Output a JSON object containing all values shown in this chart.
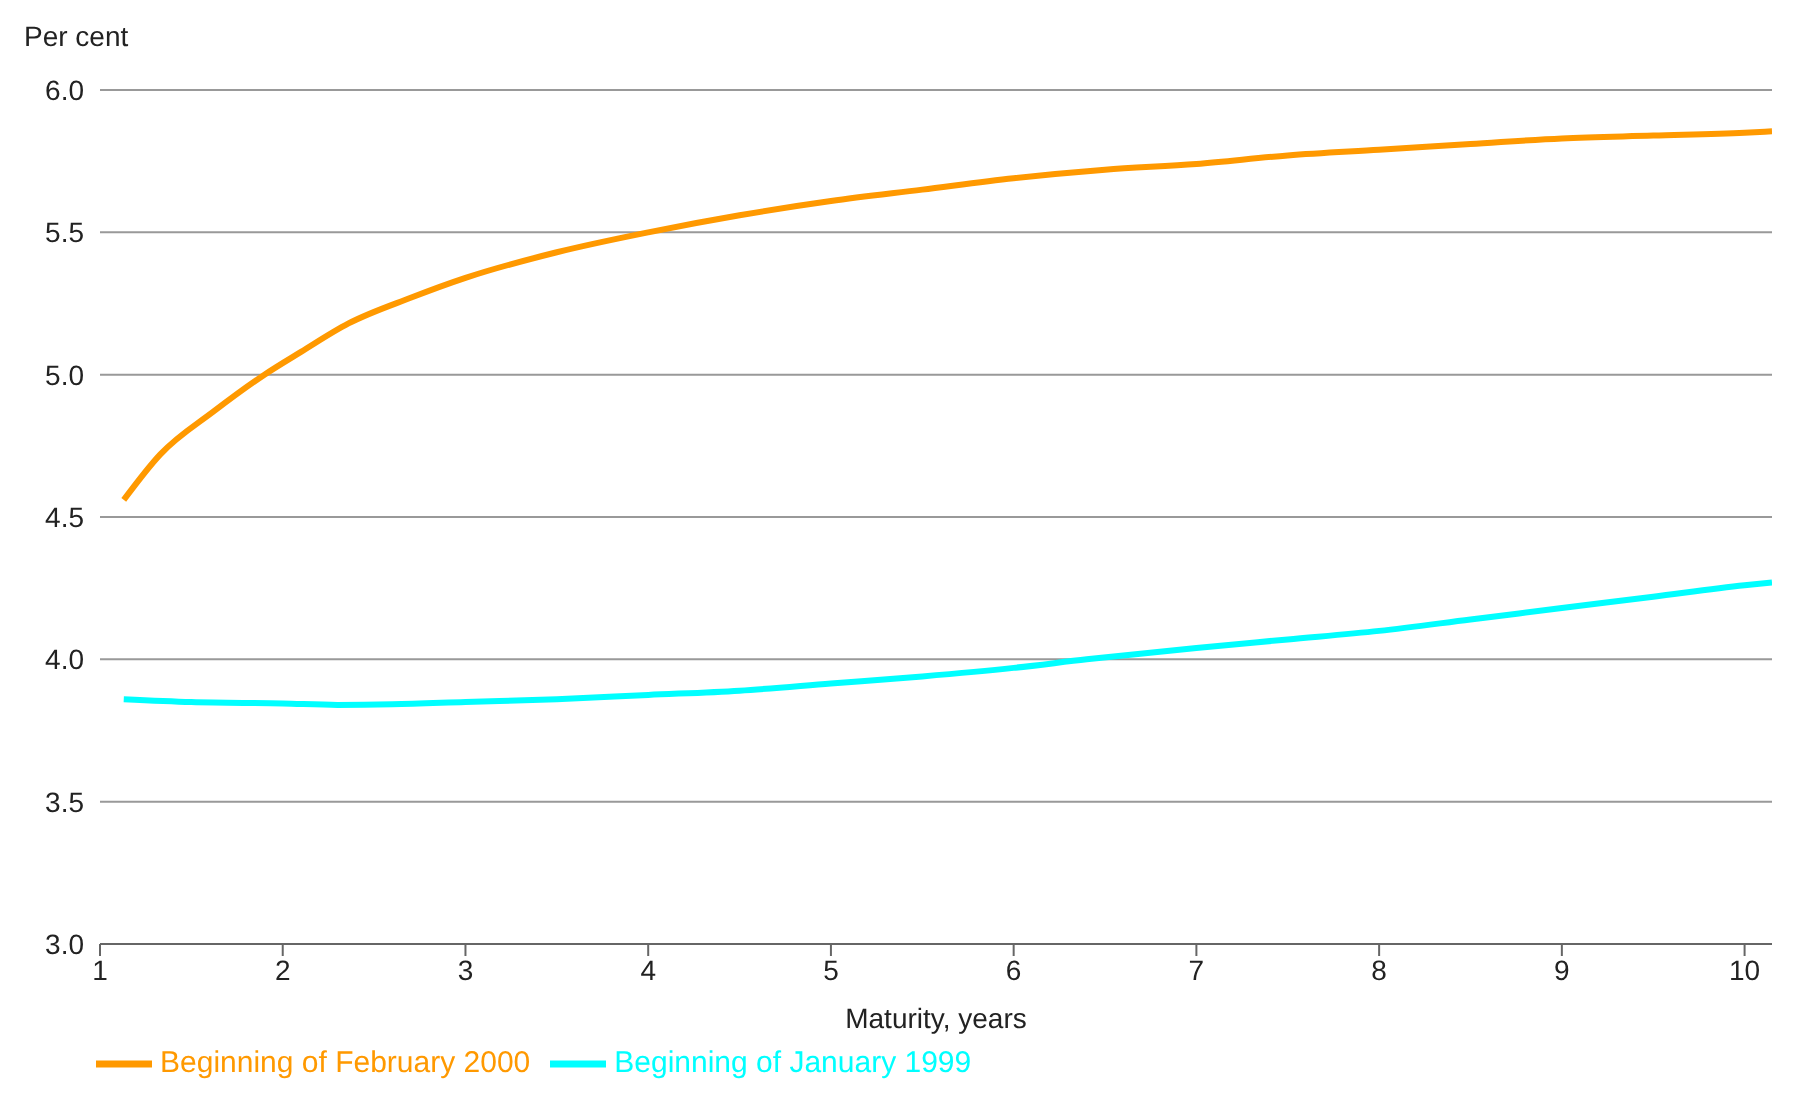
{
  "chart_data": {
    "type": "line",
    "xlabel": "Maturity, years",
    "ylabel": "Per cent",
    "xlim": [
      1,
      10.15
    ],
    "xticks": [
      1,
      2,
      3,
      4,
      5,
      6,
      7,
      8,
      9,
      10
    ],
    "ylim": [
      3,
      6
    ],
    "yticks": [
      {
        "value": 3,
        "label": "3.0"
      },
      {
        "value": 3.5,
        "label": "3.5"
      },
      {
        "value": 4,
        "label": "4.0"
      },
      {
        "value": 4.5,
        "label": "4.5"
      },
      {
        "value": 5,
        "label": "5.0"
      },
      {
        "value": 5.5,
        "label": "5.5"
      },
      {
        "value": 6,
        "label": "6.0"
      }
    ],
    "grid": "y",
    "legend": "bottom",
    "marker": "none",
    "line_style": "solid",
    "series": [
      {
        "name": "Beginning of January 1999",
        "color": "#00ffff",
        "x": [
          1.13,
          1.5,
          2,
          2.3,
          2.6,
          3,
          3.5,
          4,
          4.5,
          5,
          5.5,
          6,
          6.4,
          7,
          7.5,
          8,
          8.5,
          9,
          9.5,
          10,
          10.15
        ],
        "values": [
          3.86,
          3.85,
          3.845,
          3.84,
          3.842,
          3.85,
          3.86,
          3.875,
          3.89,
          3.915,
          3.94,
          3.97,
          4.0,
          4.04,
          4.07,
          4.1,
          4.14,
          4.18,
          4.22,
          4.26,
          4.27
        ]
      },
      {
        "name": "Beginning of February 2000",
        "color": "#ff9900",
        "x": [
          1.13,
          1.33,
          1.62,
          1.9,
          2.1,
          2.36,
          2.7,
          3,
          3.5,
          4,
          4.5,
          5,
          5.5,
          6,
          6.5,
          7,
          7.5,
          8,
          8.5,
          9,
          9.5,
          10,
          10.15
        ],
        "values": [
          4.56,
          4.72,
          4.87,
          5.0,
          5.08,
          5.18,
          5.27,
          5.34,
          5.43,
          5.5,
          5.56,
          5.61,
          5.65,
          5.69,
          5.72,
          5.74,
          5.77,
          5.79,
          5.81,
          5.83,
          5.84,
          5.85,
          5.855
        ]
      }
    ]
  }
}
